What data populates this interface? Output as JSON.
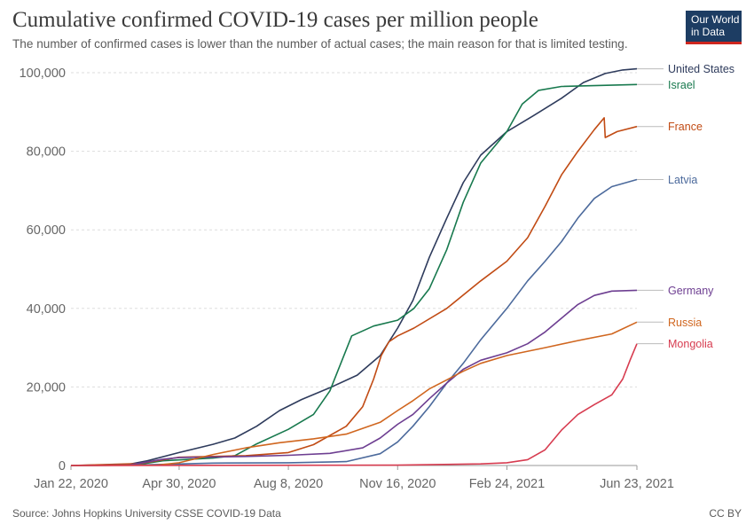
{
  "header": {
    "title": "Cumulative confirmed COVID-19 cases per million people",
    "subtitle": "The number of confirmed cases is lower than the number of actual cases; the main reason for that is limited testing.",
    "logo_line1": "Our World",
    "logo_line2": "in Data"
  },
  "footer": {
    "source": "Source: Johns Hopkins University CSSE COVID-19 Data",
    "license": "CC BY"
  },
  "colors": {
    "logo_bg": "#1d3d63",
    "logo_accent": "#ce261e",
    "grid": "#dddddd",
    "axis": "#999999"
  },
  "chart_data": {
    "type": "line",
    "title": "Cumulative confirmed COVID-19 cases per million people",
    "xlabel": "",
    "ylabel": "",
    "xlim": [
      "2020-01-22",
      "2021-06-23"
    ],
    "ylim": [
      0,
      100000
    ],
    "x_ticks": [
      "2020-01-22",
      "2020-04-30",
      "2020-08-08",
      "2020-11-16",
      "2021-02-24",
      "2021-06-23"
    ],
    "x_tick_labels": [
      "Jan 22, 2020",
      "Apr 30, 2020",
      "Aug 8, 2020",
      "Nov 16, 2020",
      "Feb 24, 2021",
      "Jun 23, 2021"
    ],
    "y_ticks": [
      0,
      20000,
      40000,
      60000,
      80000,
      100000
    ],
    "y_tick_labels": [
      "0",
      "20,000",
      "40,000",
      "60,000",
      "80,000",
      "100,000"
    ],
    "grid": "horizontal dashed",
    "legend": "labels at right end of lines",
    "series": [
      {
        "name": "United States",
        "color": "#2e3b5c",
        "points": [
          [
            "2020-01-22",
            0
          ],
          [
            "2020-03-15",
            300
          ],
          [
            "2020-04-01",
            1200
          ],
          [
            "2020-04-30",
            3300
          ],
          [
            "2020-05-31",
            5400
          ],
          [
            "2020-06-20",
            7000
          ],
          [
            "2020-07-10",
            10000
          ],
          [
            "2020-07-31",
            14000
          ],
          [
            "2020-08-20",
            16800
          ],
          [
            "2020-09-15",
            19800
          ],
          [
            "2020-10-10",
            23000
          ],
          [
            "2020-10-31",
            28000
          ],
          [
            "2020-11-16",
            35000
          ],
          [
            "2020-11-30",
            42000
          ],
          [
            "2020-12-15",
            53000
          ],
          [
            "2020-12-31",
            63000
          ],
          [
            "2021-01-15",
            72000
          ],
          [
            "2021-01-31",
            79000
          ],
          [
            "2021-02-24",
            85000
          ],
          [
            "2021-03-20",
            89000
          ],
          [
            "2021-04-15",
            93500
          ],
          [
            "2021-05-05",
            97500
          ],
          [
            "2021-05-25",
            99800
          ],
          [
            "2021-06-10",
            100700
          ],
          [
            "2021-06-23",
            101000
          ]
        ]
      },
      {
        "name": "Israel",
        "color": "#18794e",
        "points": [
          [
            "2020-01-22",
            0
          ],
          [
            "2020-03-20",
            100
          ],
          [
            "2020-04-15",
            1200
          ],
          [
            "2020-05-31",
            1900
          ],
          [
            "2020-06-20",
            2500
          ],
          [
            "2020-07-10",
            5500
          ],
          [
            "2020-08-08",
            9200
          ],
          [
            "2020-08-31",
            13000
          ],
          [
            "2020-09-15",
            19000
          ],
          [
            "2020-09-25",
            26000
          ],
          [
            "2020-10-05",
            33000
          ],
          [
            "2020-10-25",
            35500
          ],
          [
            "2020-11-16",
            37000
          ],
          [
            "2020-12-01",
            40000
          ],
          [
            "2020-12-15",
            45000
          ],
          [
            "2020-12-31",
            55000
          ],
          [
            "2021-01-15",
            67000
          ],
          [
            "2021-01-31",
            77000
          ],
          [
            "2021-02-24",
            85000
          ],
          [
            "2021-03-10",
            92000
          ],
          [
            "2021-03-25",
            95500
          ],
          [
            "2021-04-15",
            96500
          ],
          [
            "2021-06-23",
            97000
          ]
        ]
      },
      {
        "name": "France",
        "color": "#c14b14",
        "points": [
          [
            "2020-01-22",
            0
          ],
          [
            "2020-03-25",
            500
          ],
          [
            "2020-04-30",
            2100
          ],
          [
            "2020-06-30",
            2500
          ],
          [
            "2020-08-08",
            3300
          ],
          [
            "2020-08-31",
            5300
          ],
          [
            "2020-09-30",
            10000
          ],
          [
            "2020-10-15",
            15000
          ],
          [
            "2020-10-25",
            22000
          ],
          [
            "2020-11-01",
            28000
          ],
          [
            "2020-11-08",
            31500
          ],
          [
            "2020-11-16",
            33000
          ],
          [
            "2020-12-01",
            35000
          ],
          [
            "2020-12-31",
            40000
          ],
          [
            "2021-01-31",
            47000
          ],
          [
            "2021-02-24",
            52000
          ],
          [
            "2021-03-15",
            58000
          ],
          [
            "2021-03-31",
            66000
          ],
          [
            "2021-04-15",
            74000
          ],
          [
            "2021-04-30",
            80000
          ],
          [
            "2021-05-15",
            85500
          ],
          [
            "2021-05-24",
            88500
          ],
          [
            "2021-05-25",
            83500
          ],
          [
            "2021-06-05",
            85000
          ],
          [
            "2021-06-23",
            86300
          ]
        ]
      },
      {
        "name": "Latvia",
        "color": "#4c6a9c",
        "points": [
          [
            "2020-01-22",
            0
          ],
          [
            "2020-03-20",
            100
          ],
          [
            "2020-05-31",
            600
          ],
          [
            "2020-08-08",
            700
          ],
          [
            "2020-09-30",
            1000
          ],
          [
            "2020-10-31",
            3000
          ],
          [
            "2020-11-16",
            6000
          ],
          [
            "2020-11-30",
            10000
          ],
          [
            "2020-12-15",
            15000
          ],
          [
            "2020-12-31",
            21000
          ],
          [
            "2021-01-15",
            26000
          ],
          [
            "2021-01-31",
            32000
          ],
          [
            "2021-02-24",
            40000
          ],
          [
            "2021-03-15",
            47000
          ],
          [
            "2021-03-31",
            52000
          ],
          [
            "2021-04-15",
            57000
          ],
          [
            "2021-04-30",
            63000
          ],
          [
            "2021-05-15",
            68000
          ],
          [
            "2021-05-31",
            71000
          ],
          [
            "2021-06-23",
            72800
          ]
        ]
      },
      {
        "name": "Germany",
        "color": "#6d3e91",
        "points": [
          [
            "2020-01-22",
            0
          ],
          [
            "2020-03-15",
            100
          ],
          [
            "2020-04-15",
            1600
          ],
          [
            "2020-04-30",
            2000
          ],
          [
            "2020-06-30",
            2300
          ],
          [
            "2020-08-08",
            2600
          ],
          [
            "2020-09-15",
            3100
          ],
          [
            "2020-10-15",
            4500
          ],
          [
            "2020-10-31",
            7000
          ],
          [
            "2020-11-16",
            10500
          ],
          [
            "2020-11-30",
            13000
          ],
          [
            "2020-12-15",
            17000
          ],
          [
            "2020-12-31",
            21000
          ],
          [
            "2021-01-15",
            24500
          ],
          [
            "2021-01-31",
            26800
          ],
          [
            "2021-02-24",
            28700
          ],
          [
            "2021-03-15",
            31000
          ],
          [
            "2021-03-31",
            34000
          ],
          [
            "2021-04-15",
            37500
          ],
          [
            "2021-04-30",
            41000
          ],
          [
            "2021-05-15",
            43300
          ],
          [
            "2021-05-31",
            44400
          ],
          [
            "2021-06-23",
            44600
          ]
        ]
      },
      {
        "name": "Russia",
        "color": "#d0661f",
        "points": [
          [
            "2020-01-22",
            0
          ],
          [
            "2020-04-10",
            100
          ],
          [
            "2020-04-30",
            700
          ],
          [
            "2020-05-31",
            2800
          ],
          [
            "2020-06-30",
            4500
          ],
          [
            "2020-07-31",
            5800
          ],
          [
            "2020-08-31",
            6800
          ],
          [
            "2020-09-30",
            8000
          ],
          [
            "2020-10-31",
            11000
          ],
          [
            "2020-11-16",
            14000
          ],
          [
            "2020-11-30",
            16500
          ],
          [
            "2020-12-15",
            19500
          ],
          [
            "2020-12-31",
            21800
          ],
          [
            "2021-01-15",
            24000
          ],
          [
            "2021-01-31",
            26000
          ],
          [
            "2021-02-24",
            28000
          ],
          [
            "2021-03-31",
            30000
          ],
          [
            "2021-04-30",
            31800
          ],
          [
            "2021-05-31",
            33500
          ],
          [
            "2021-06-23",
            36500
          ]
        ]
      },
      {
        "name": "Mongolia",
        "color": "#d73c50",
        "points": [
          [
            "2020-01-22",
            0
          ],
          [
            "2020-11-16",
            100
          ],
          [
            "2021-01-31",
            400
          ],
          [
            "2021-02-24",
            700
          ],
          [
            "2021-03-15",
            1500
          ],
          [
            "2021-03-31",
            4000
          ],
          [
            "2021-04-15",
            9000
          ],
          [
            "2021-04-30",
            13000
          ],
          [
            "2021-05-15",
            15500
          ],
          [
            "2021-05-31",
            18000
          ],
          [
            "2021-06-10",
            22000
          ],
          [
            "2021-06-17",
            27000
          ],
          [
            "2021-06-23",
            31000
          ]
        ]
      }
    ]
  }
}
